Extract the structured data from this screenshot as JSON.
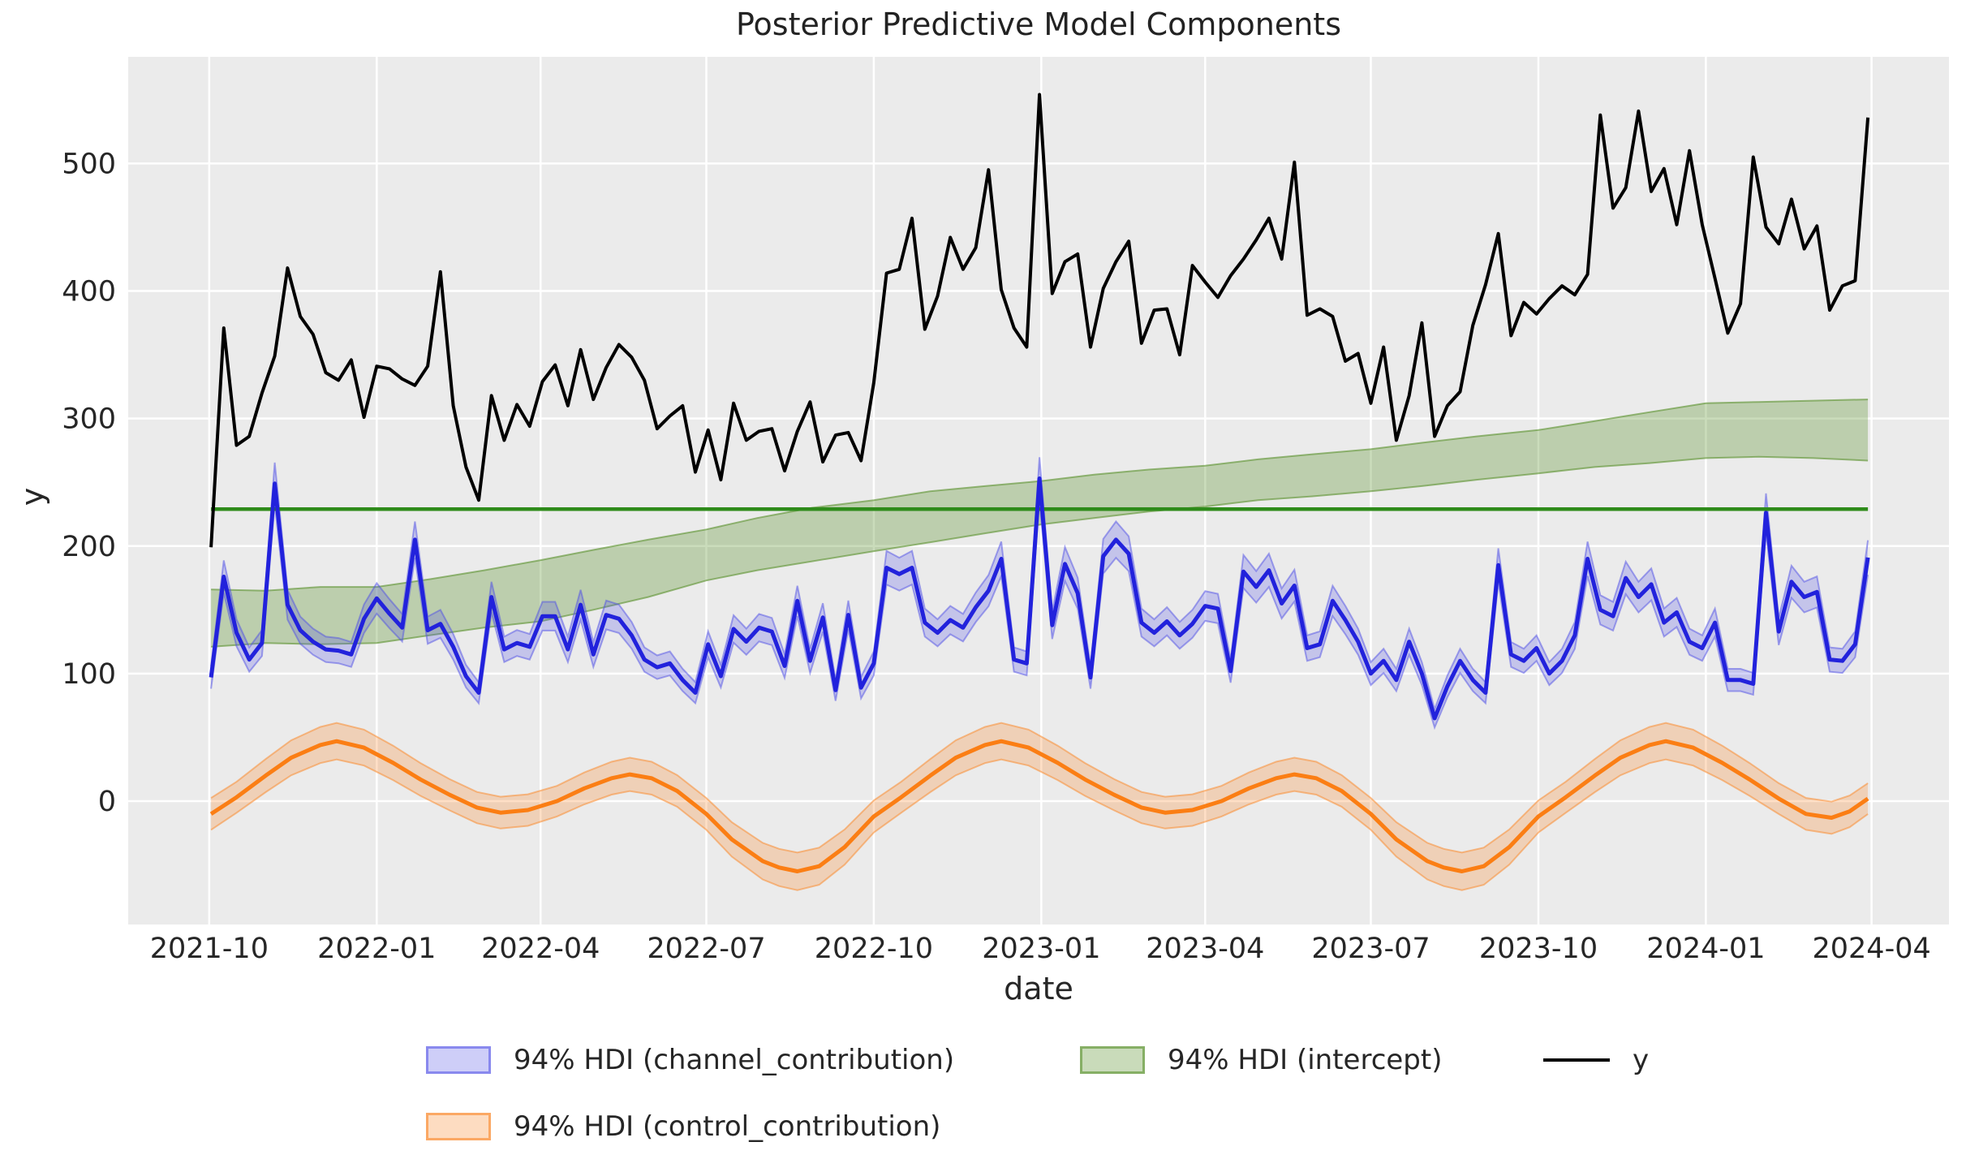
{
  "chart_data": {
    "type": "line",
    "title": "Posterior Predictive Model Components",
    "xlabel": "date",
    "ylabel": "y",
    "background_color": "#ebebeb",
    "grid_color": "#ffffff",
    "start_date": "2021-10-02",
    "freq_days": 7,
    "n_points": 131,
    "xlim_days": [
      -45.5,
      954.5
    ],
    "ylim": [
      -96.7,
      583.6
    ],
    "y_ticks": [
      0,
      100,
      200,
      300,
      400,
      500
    ],
    "x_ticks": [
      {
        "label": "2021-10",
        "day": -1
      },
      {
        "label": "2022-01",
        "day": 91
      },
      {
        "label": "2022-04",
        "day": 181
      },
      {
        "label": "2022-07",
        "day": 272
      },
      {
        "label": "2022-10",
        "day": 364
      },
      {
        "label": "2023-01",
        "day": 456
      },
      {
        "label": "2023-04",
        "day": 546
      },
      {
        "label": "2023-07",
        "day": 637
      },
      {
        "label": "2023-10",
        "day": 729
      },
      {
        "label": "2024-01",
        "day": 821
      },
      {
        "label": "2024-04",
        "day": 912
      }
    ],
    "series": {
      "y": {
        "label": "y",
        "color": "#000000",
        "values": [
          199,
          371,
          279,
          286,
          320,
          349,
          418,
          380,
          366,
          336,
          330,
          346,
          301,
          341,
          339,
          331,
          326,
          341,
          415,
          310,
          262,
          236,
          318,
          283,
          311,
          294,
          329,
          342,
          310,
          354,
          315,
          340,
          358,
          348,
          330,
          292,
          302,
          310,
          258,
          291,
          252,
          312,
          283,
          290,
          292,
          259,
          290,
          313,
          266,
          287,
          289,
          267,
          328,
          414,
          417,
          457,
          370,
          396,
          442,
          417,
          434,
          495,
          401,
          371,
          356,
          554,
          398,
          423,
          429,
          356,
          402,
          423,
          439,
          359,
          385,
          386,
          350,
          420,
          407,
          395,
          412,
          425,
          440,
          457,
          425,
          501,
          381,
          386,
          380,
          345,
          351,
          312,
          356,
          283,
          318,
          375,
          286,
          310,
          321,
          373,
          405,
          445,
          365,
          391,
          382,
          394,
          404,
          397,
          413,
          538,
          465,
          481,
          541,
          478,
          496,
          452,
          510,
          452,
          410,
          367,
          390,
          505,
          450,
          437,
          472,
          433,
          451,
          385,
          404,
          408,
          536
        ]
      },
      "channel_contribution": {
        "label": "94% HDI (channel_contribution)",
        "line_color": "#2222dc",
        "band_fill": "rgba(80,80,230,0.25)",
        "band_edge": "rgba(80,80,230,0.5)",
        "hdi_halfwidth_base": 4,
        "hdi_halfwidth_frac": 0.05,
        "values": [
          97,
          176,
          132,
          111,
          124,
          249,
          154,
          134,
          125,
          119,
          118,
          115,
          143,
          159,
          147,
          136,
          205,
          134,
          139,
          121,
          98,
          85,
          160,
          119,
          124,
          121,
          145,
          145,
          119,
          154,
          115,
          146,
          143,
          130,
          111,
          105,
          108,
          95,
          85,
          123,
          98,
          135,
          125,
          136,
          133,
          106,
          157,
          110,
          144,
          87,
          146,
          89,
          108,
          183,
          178,
          183,
          140,
          132,
          142,
          136,
          152,
          165,
          190,
          111,
          108,
          253,
          138,
          186,
          163,
          97,
          192,
          205,
          194,
          140,
          132,
          141,
          130,
          139,
          153,
          151,
          102,
          180,
          168,
          181,
          155,
          169,
          120,
          123,
          157,
          142,
          125,
          100,
          110,
          95,
          125,
          100,
          65,
          90,
          110,
          95,
          85,
          185,
          115,
          110,
          120,
          100,
          110,
          130,
          190,
          150,
          145,
          175,
          160,
          170,
          140,
          148,
          125,
          120,
          140,
          95,
          95,
          92,
          226,
          133,
          172,
          160,
          164,
          111,
          110,
          123,
          191
        ]
      },
      "control_contribution": {
        "label": "94% HDI (control_contribution)",
        "line_color": "#fb7e14",
        "band_fill": "rgba(250,140,50,0.28)",
        "band_edge": "rgba(250,140,50,0.55)",
        "hdi_halfwidth_base": 12,
        "hdi_halfwidth_frac": 0.05,
        "anchor_days": [
          0,
          14,
          30,
          44,
          60,
          69,
          84,
          100,
          115,
          131,
          146,
          159,
          174,
          190,
          205,
          220,
          230,
          242,
          256,
          272,
          286,
          303,
          312,
          322,
          334,
          348,
          364,
          379,
          395,
          409,
          425,
          434,
          449,
          465,
          480,
          496,
          511,
          524,
          539,
          555,
          570,
          585,
          595,
          607,
          621,
          637,
          651,
          668,
          677,
          687,
          699,
          713,
          729,
          744,
          760,
          774,
          790,
          799,
          814,
          830,
          845,
          861,
          876,
          890,
          900,
          910
        ],
        "anchor_values": [
          -10,
          3,
          20,
          34,
          44,
          47,
          42,
          30,
          17,
          5,
          -5,
          -9,
          -7,
          0,
          10,
          18,
          21,
          18,
          8,
          -10,
          -30,
          -47,
          -52,
          -55,
          -51,
          -36,
          -12,
          3,
          20,
          34,
          44,
          47,
          42,
          30,
          17,
          5,
          -5,
          -9,
          -7,
          0,
          10,
          18,
          21,
          18,
          8,
          -10,
          -30,
          -47,
          -52,
          -55,
          -51,
          -36,
          -12,
          3,
          20,
          34,
          44,
          47,
          42,
          30,
          17,
          2,
          -10,
          -13,
          -8,
          2
        ]
      },
      "intercept": {
        "label": "94% HDI (intercept)",
        "line_value": 229,
        "line_color": "#2e8b1a",
        "band_fill": "rgba(90,145,45,0.32)",
        "band_edge": "rgba(90,145,45,0.6)",
        "band_days": [
          0,
          30,
          60,
          91,
          120,
          150,
          181,
          210,
          240,
          272,
          300,
          330,
          364,
          395,
          425,
          456,
          485,
          515,
          546,
          575,
          605,
          637,
          665,
          695,
          729,
          760,
          790,
          821,
          850,
          880,
          910
        ],
        "band_low": [
          121,
          124,
          123,
          124,
          130,
          136,
          141,
          150,
          160,
          173,
          181,
          188,
          196,
          203,
          210,
          217,
          222,
          227,
          231,
          236,
          239,
          243,
          247,
          252,
          257,
          262,
          265,
          269,
          270,
          269,
          267
        ],
        "band_high": [
          166,
          165,
          168,
          168,
          174,
          181,
          189,
          197,
          205,
          213,
          222,
          230,
          236,
          243,
          247,
          251,
          256,
          260,
          263,
          268,
          272,
          276,
          281,
          286,
          291,
          298,
          305,
          312,
          313,
          314,
          315
        ]
      }
    },
    "legend": {
      "channel": "94% HDI (channel_contribution)",
      "control": "94% HDI (control_contribution)",
      "intercept": "94% HDI (intercept)",
      "y": "y"
    }
  }
}
